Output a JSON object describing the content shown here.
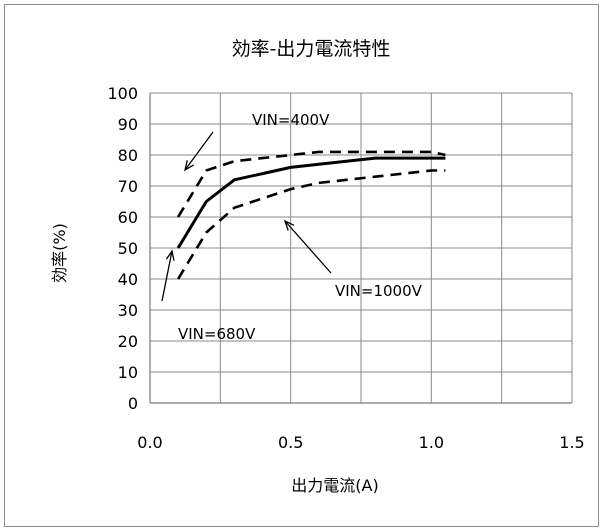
{
  "chart_data": {
    "type": "line",
    "title": "効率-出力電流特性",
    "xlabel": "出力電流(A)",
    "ylabel": "効率(%)",
    "xlim": [
      0.0,
      1.5
    ],
    "ylim": [
      0,
      100
    ],
    "xticks": [
      "0.0",
      "0.5",
      "1.0",
      "1.5"
    ],
    "yticks": [
      "0",
      "10",
      "20",
      "30",
      "40",
      "50",
      "60",
      "70",
      "80",
      "90",
      "100"
    ],
    "grid": true,
    "series": [
      {
        "name": "VIN=680V",
        "style": "solid",
        "x": [
          0.1,
          0.2,
          0.3,
          0.4,
          0.5,
          0.6,
          0.8,
          1.0,
          1.05
        ],
        "y": [
          50,
          65,
          72,
          74,
          76,
          77,
          79,
          79,
          79
        ]
      },
      {
        "name": "VIN=400V",
        "style": "dashed",
        "x": [
          0.1,
          0.2,
          0.3,
          0.4,
          0.5,
          0.6,
          0.8,
          1.0,
          1.05
        ],
        "y": [
          60,
          75,
          78,
          79,
          80,
          81,
          81,
          81,
          80
        ]
      },
      {
        "name": "VIN=1000V",
        "style": "dashed",
        "x": [
          0.1,
          0.2,
          0.3,
          0.4,
          0.5,
          0.6,
          0.8,
          1.0,
          1.05
        ],
        "y": [
          40,
          55,
          63,
          66,
          69,
          71,
          73,
          75,
          75
        ]
      }
    ],
    "annotations": [
      {
        "text": "VIN=400V"
      },
      {
        "text": "VIN=1000V"
      },
      {
        "text": "VIN=680V"
      }
    ]
  }
}
